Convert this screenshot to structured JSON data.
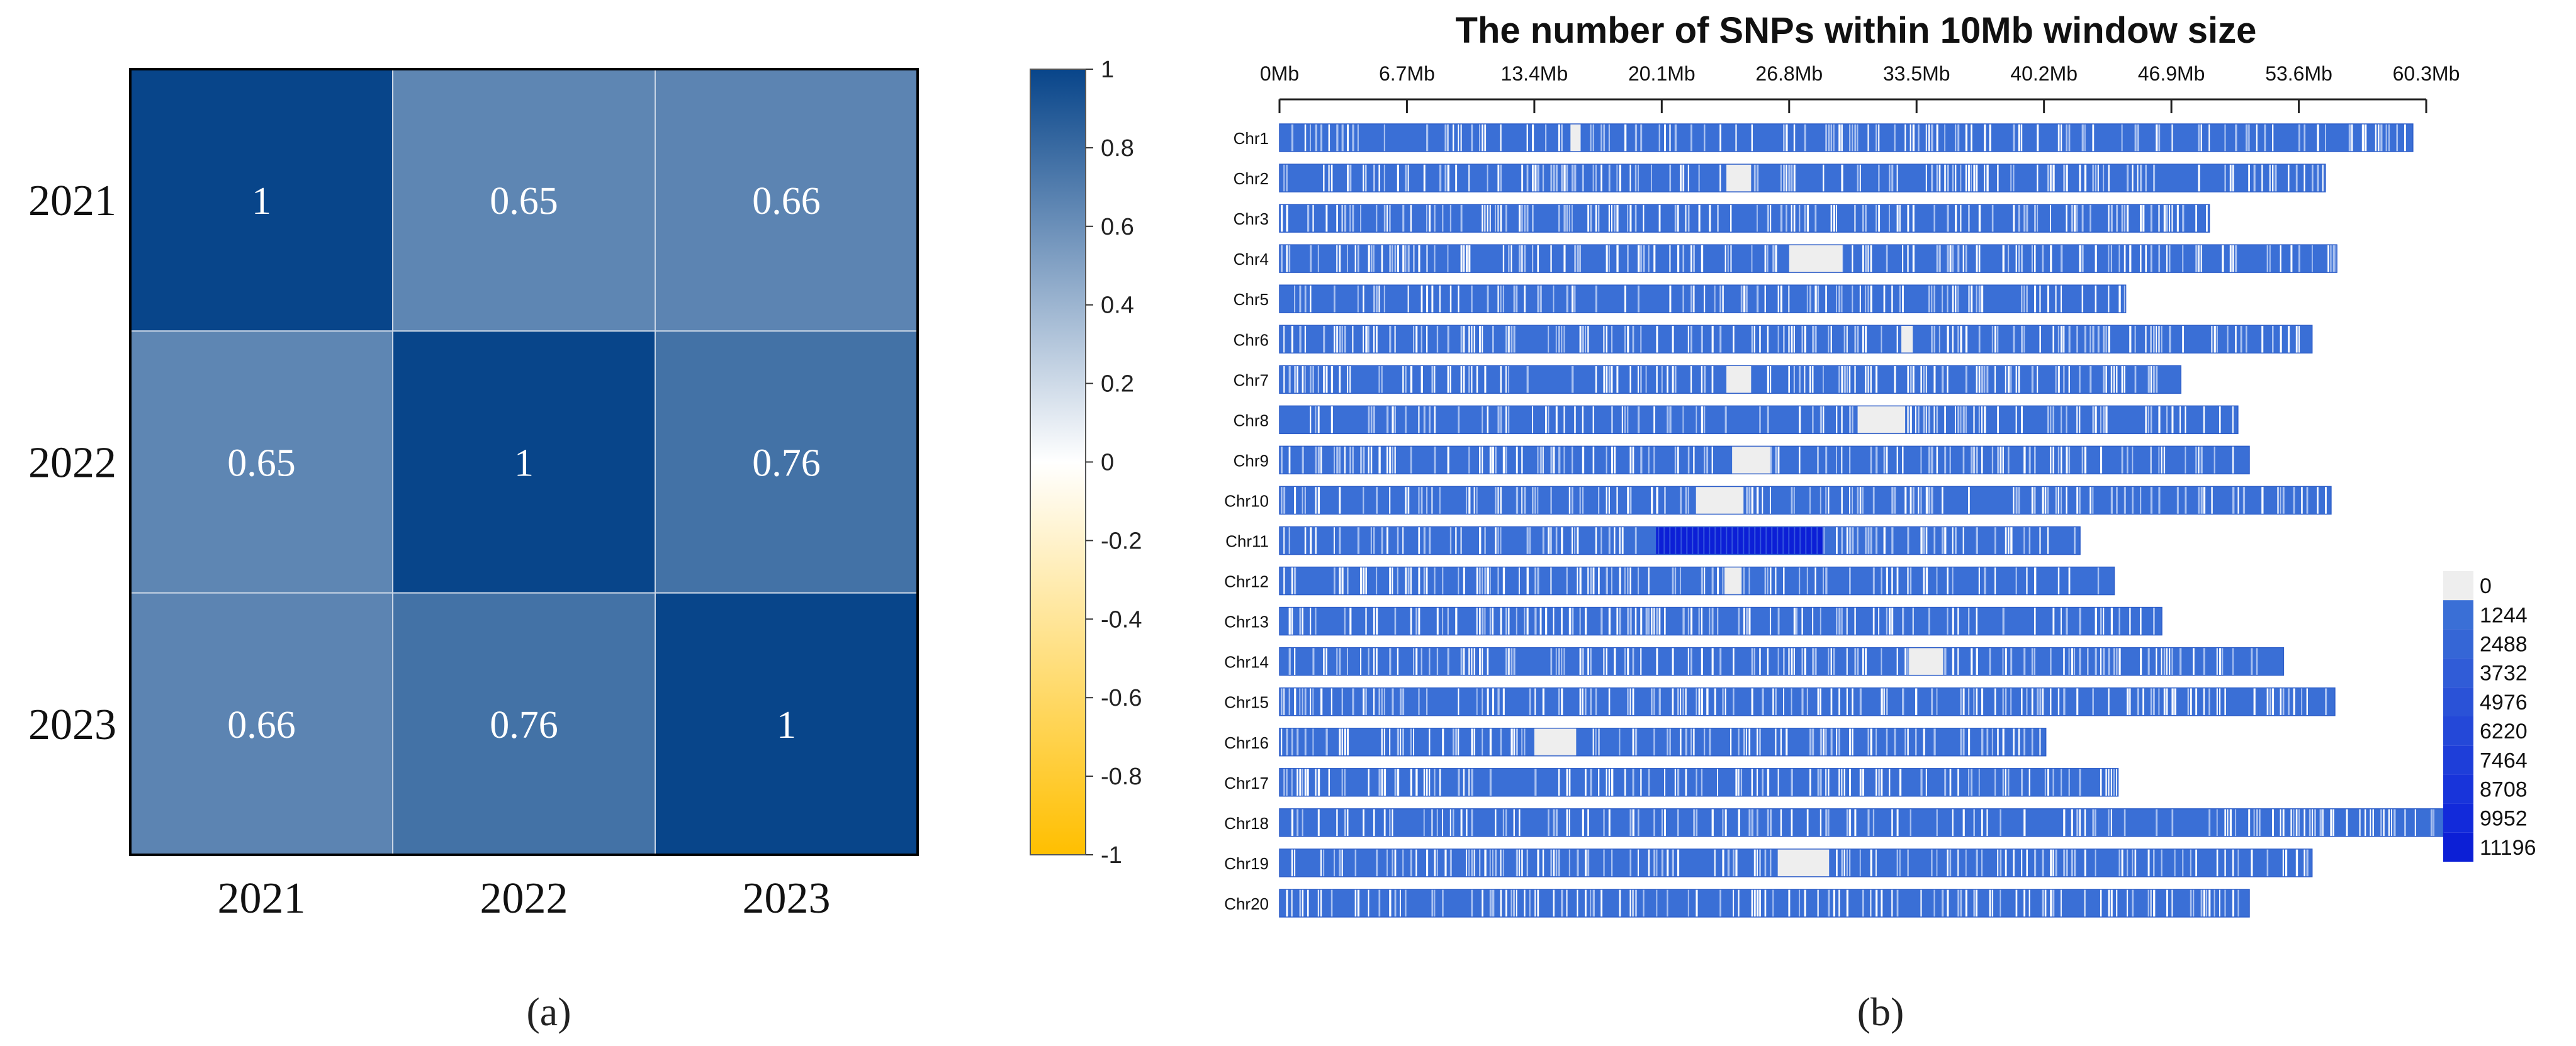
{
  "panel_labels": [
    "(a)",
    "(b)"
  ],
  "chart_data": [
    {
      "type": "heatmap",
      "rows": [
        "2021",
        "2022",
        "2023"
      ],
      "cols": [
        "2021",
        "2022",
        "2023"
      ],
      "values": [
        [
          1,
          0.65,
          0.66
        ],
        [
          0.65,
          1,
          0.76
        ],
        [
          0.66,
          0.76,
          1
        ]
      ],
      "value_labels": [
        [
          "1",
          "0.65",
          "0.66"
        ],
        [
          "0.65",
          "1",
          "0.76"
        ],
        [
          "0.66",
          "0.76",
          "1"
        ]
      ],
      "colorbar": {
        "range": [
          -1,
          1
        ],
        "ticks": [
          "1",
          "0.8",
          "0.6",
          "0.4",
          "0.2",
          "0",
          "-0.2",
          "-0.4",
          "-0.6",
          "-0.8",
          "-1"
        ],
        "colors": {
          "low": "#ffbf00",
          "mid": "#ffffff",
          "high": "#08458a"
        }
      }
    },
    {
      "type": "heatmap",
      "title": "The number of SNPs within 10Mb window size",
      "x_ticks": [
        "0Mb",
        "6.7Mb",
        "13.4Mb",
        "20.1Mb",
        "26.8Mb",
        "33.5Mb",
        "40.2Mb",
        "46.9Mb",
        "53.6Mb",
        "60.3Mb"
      ],
      "x_tick_values": [
        0,
        6.7,
        13.4,
        20.1,
        26.8,
        33.5,
        40.2,
        46.9,
        53.6,
        60.3
      ],
      "chromosomes": [
        "Chr1",
        "Chr2",
        "Chr3",
        "Chr4",
        "Chr5",
        "Chr6",
        "Chr7",
        "Chr8",
        "Chr9",
        "Chr10",
        "Chr11",
        "Chr12",
        "Chr13",
        "Chr14",
        "Chr15",
        "Chr16",
        "Chr17",
        "Chr18",
        "Chr19",
        "Chr20"
      ],
      "lengths_mb": [
        59.6,
        55.0,
        48.9,
        55.6,
        44.5,
        54.3,
        47.4,
        50.4,
        51.0,
        55.3,
        42.1,
        43.9,
        46.4,
        52.8,
        55.5,
        40.3,
        44.1,
        61.2,
        54.3,
        51.0
      ],
      "gaps_mb": [
        [
          [
            15.3,
            15.8
          ]
        ],
        [
          [
            23.5,
            24.8
          ]
        ],
        [],
        [
          [
            26.8,
            29.6
          ]
        ],
        [],
        [
          [
            32.7,
            33.3
          ]
        ],
        [
          [
            23.5,
            24.8
          ]
        ],
        [
          [
            30.4,
            32.9
          ]
        ],
        [
          [
            23.8,
            25.8
          ]
        ],
        [
          [
            21.9,
            24.4
          ]
        ],
        [],
        [
          [
            23.4,
            24.3
          ]
        ],
        [],
        [
          [
            33.1,
            34.9
          ]
        ],
        [],
        [
          [
            13.4,
            15.6
          ]
        ],
        [],
        [],
        [
          [
            26.2,
            28.9
          ]
        ],
        []
      ],
      "hotspots_mb": [
        [],
        [],
        [],
        [],
        [],
        [],
        [],
        [],
        [],
        [],
        [
          [
            19.8,
            28.6
          ]
        ],
        [],
        [],
        [],
        [],
        [],
        [],
        [],
        [],
        []
      ],
      "legend": {
        "labels": [
          "0",
          "1244",
          "2488",
          "3732",
          "4976",
          "6220",
          "7464",
          "8708",
          "9952",
          "11196"
        ],
        "colors": [
          "#eeeeee",
          "#3a6fd6",
          "#3566d6",
          "#305cd7",
          "#2a52d7",
          "#2448d8",
          "#1e3ed9",
          "#1834da",
          "#122ada",
          "#0c1fd6"
        ]
      }
    }
  ]
}
